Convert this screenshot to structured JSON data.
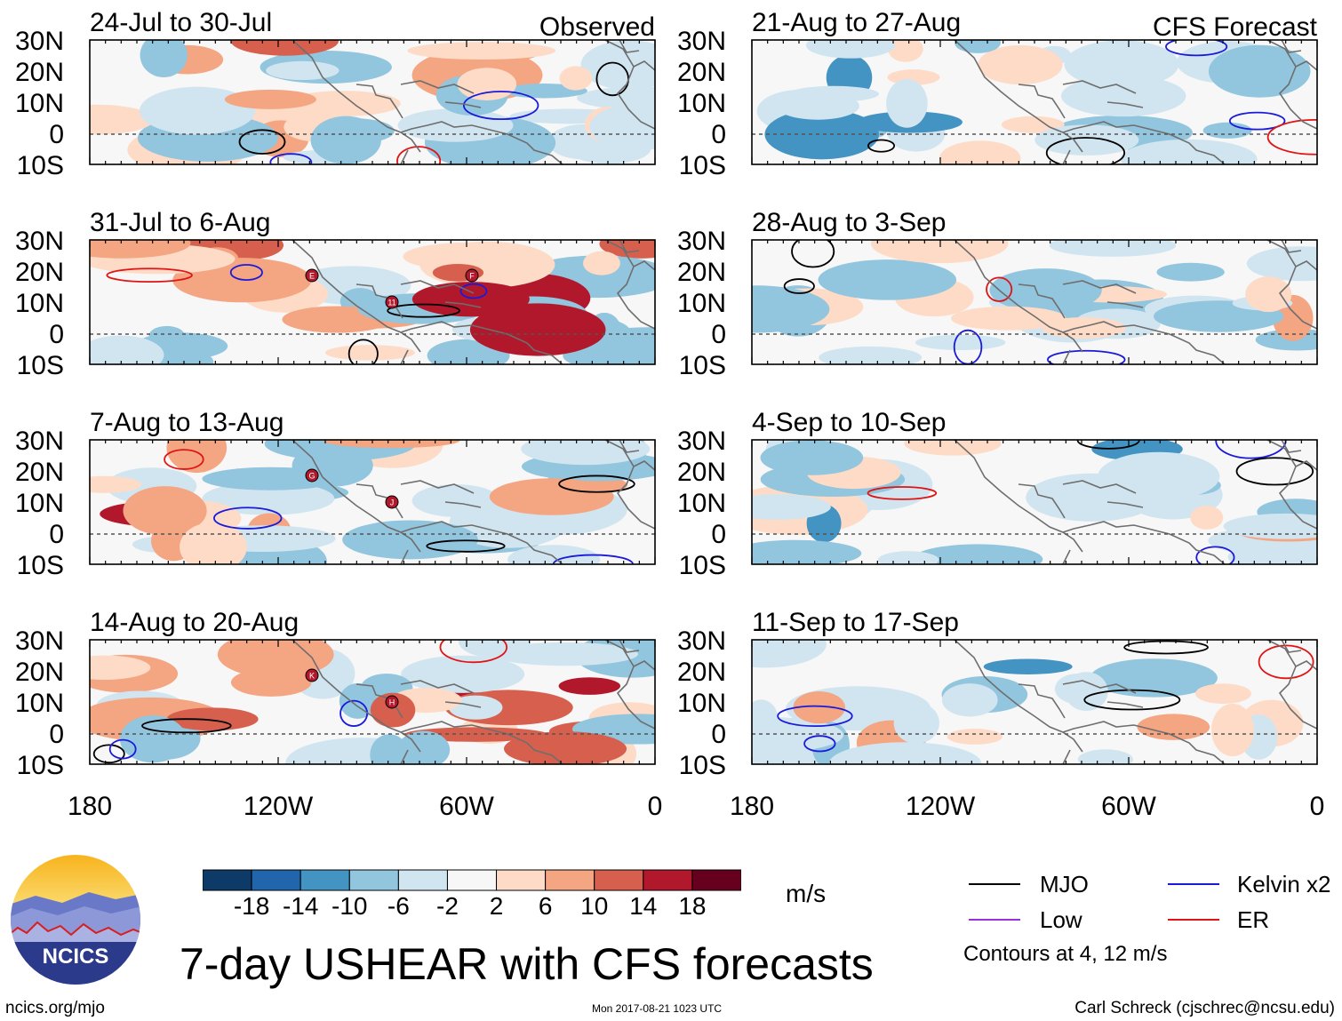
{
  "chart_data": {
    "type": "heatmap",
    "title": "7-day USHEAR with CFS forecasts",
    "variable": "USHEAR",
    "units": "m/s",
    "lon_ticks": [
      "180",
      "120W",
      "60W",
      "0"
    ],
    "lat_ticks": [
      "30N",
      "20N",
      "10N",
      "0",
      "10S"
    ],
    "columns": [
      {
        "header": "Observed",
        "panels": [
          "24-Jul to 30-Jul",
          "31-Jul to 6-Aug",
          "7-Aug to 13-Aug",
          "14-Aug to 20-Aug"
        ]
      },
      {
        "header": "CFS Forecast",
        "panels": [
          "21-Aug to 27-Aug",
          "28-Aug to 3-Sep",
          "4-Sep to 10-Sep",
          "11-Sep to 17-Sep"
        ]
      }
    ],
    "colorbar": {
      "labels": [
        "-18",
        "-14",
        "-10",
        "-6",
        "-2",
        "2",
        "6",
        "10",
        "14",
        "18"
      ],
      "colors": [
        "#0e3a68",
        "#2166ac",
        "#4393c3",
        "#92c5de",
        "#d1e5f0",
        "#f7f7f7",
        "#fddbc7",
        "#f4a582",
        "#d6604d",
        "#b2182b",
        "#67001f"
      ]
    },
    "contours": {
      "legend": [
        {
          "name": "MJO",
          "color": "#000000"
        },
        {
          "name": "Kelvin x2",
          "color": "#1a1adb"
        },
        {
          "name": "Low",
          "color": "#9b30d9"
        },
        {
          "name": "ER",
          "color": "#e01414"
        }
      ],
      "note": "Contours at 4, 12 m/s"
    },
    "storm_markers": [
      {
        "panel": 1,
        "labels": [
          "E",
          "11",
          "F"
        ]
      },
      {
        "panel": 2,
        "labels": [
          "G",
          "J"
        ]
      },
      {
        "panel": 3,
        "labels": [
          "K",
          "H"
        ]
      }
    ]
  },
  "branding": {
    "logo_text": "NCICS",
    "source_url": "ncics.org/mjo",
    "timestamp": "Mon 2017-08-21 1023 UTC",
    "credit": "Carl Schreck (cjschrec@ncsu.edu)"
  }
}
